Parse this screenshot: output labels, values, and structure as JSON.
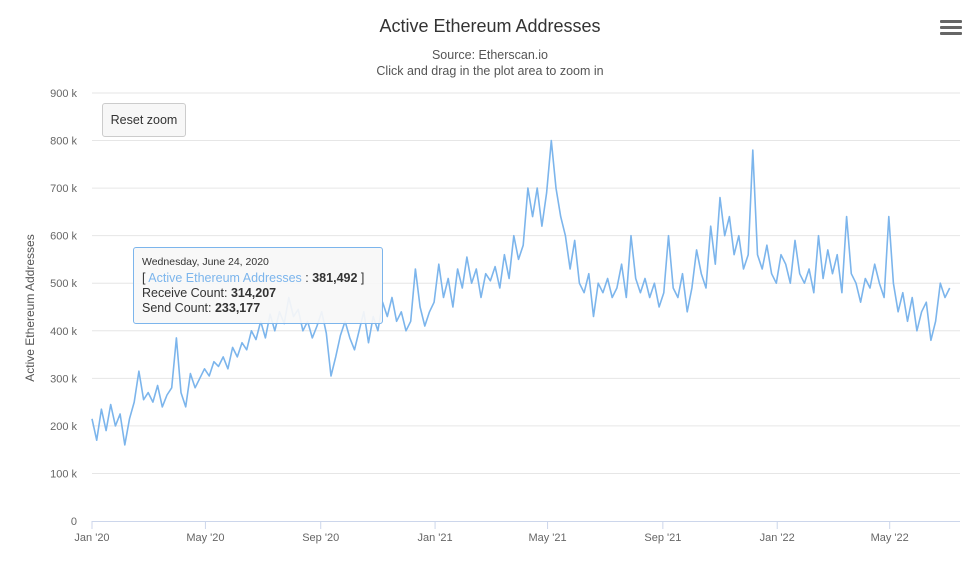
{
  "title": "Active Ethereum Addresses",
  "subtitle": "Source: Etherscan.io",
  "subtitle2": "Click and drag in the plot area to zoom in",
  "reset_zoom_label": "Reset zoom",
  "menu_icon": "hamburger-menu-icon",
  "tooltip": {
    "date": "Wednesday, June 24, 2020",
    "open_bracket": "[ ",
    "series_name": "Active Ethereum Addresses",
    "separator": " : ",
    "value": "381,492",
    "close_bracket": " ]",
    "receive_label": "Receive Count: ",
    "receive_value": "314,207",
    "send_label": "Send Count: ",
    "send_value": "233,177"
  },
  "colors": {
    "series": "#7cb5ec",
    "grid": "#e6e6e6",
    "axis": "#ccd6eb",
    "text": "#333333"
  },
  "chart_data": {
    "type": "line",
    "title": "Active Ethereum Addresses",
    "subtitle": "Source: Etherscan.io",
    "ylabel": "Active Ethereum Addresses",
    "xlabel": "",
    "ylim": [
      0,
      900000
    ],
    "xlim": [
      "2020-01-01",
      "2022-07-15"
    ],
    "grid": true,
    "legend": "none",
    "y_ticks": [
      {
        "value": 0,
        "label": "0"
      },
      {
        "value": 100000,
        "label": "100 k"
      },
      {
        "value": 200000,
        "label": "200 k"
      },
      {
        "value": 300000,
        "label": "300 k"
      },
      {
        "value": 400000,
        "label": "400 k"
      },
      {
        "value": 500000,
        "label": "500 k"
      },
      {
        "value": 600000,
        "label": "600 k"
      },
      {
        "value": 700000,
        "label": "700 k"
      },
      {
        "value": 800000,
        "label": "800 k"
      },
      {
        "value": 900000,
        "label": "900 k"
      }
    ],
    "x_ticks": [
      {
        "date": "2020-01-01",
        "label": "Jan '20"
      },
      {
        "date": "2020-05-01",
        "label": "May '20"
      },
      {
        "date": "2020-09-01",
        "label": "Sep '20"
      },
      {
        "date": "2021-01-01",
        "label": "Jan '21"
      },
      {
        "date": "2021-05-01",
        "label": "May '21"
      },
      {
        "date": "2021-09-01",
        "label": "Sep '21"
      },
      {
        "date": "2022-01-01",
        "label": "Jan '22"
      },
      {
        "date": "2022-05-01",
        "label": "May '22"
      }
    ],
    "series": [
      {
        "name": "Active Ethereum Addresses",
        "points": [
          [
            "2020-01-01",
            215000
          ],
          [
            "2020-01-06",
            170000
          ],
          [
            "2020-01-11",
            235000
          ],
          [
            "2020-01-16",
            190000
          ],
          [
            "2020-01-21",
            245000
          ],
          [
            "2020-01-26",
            200000
          ],
          [
            "2020-01-31",
            225000
          ],
          [
            "2020-02-05",
            160000
          ],
          [
            "2020-02-10",
            215000
          ],
          [
            "2020-02-15",
            250000
          ],
          [
            "2020-02-20",
            315000
          ],
          [
            "2020-02-25",
            255000
          ],
          [
            "2020-03-01",
            270000
          ],
          [
            "2020-03-06",
            250000
          ],
          [
            "2020-03-11",
            285000
          ],
          [
            "2020-03-16",
            240000
          ],
          [
            "2020-03-21",
            265000
          ],
          [
            "2020-03-26",
            280000
          ],
          [
            "2020-03-31",
            385000
          ],
          [
            "2020-04-05",
            270000
          ],
          [
            "2020-04-10",
            240000
          ],
          [
            "2020-04-15",
            310000
          ],
          [
            "2020-04-20",
            280000
          ],
          [
            "2020-04-25",
            300000
          ],
          [
            "2020-04-30",
            320000
          ],
          [
            "2020-05-05",
            305000
          ],
          [
            "2020-05-10",
            335000
          ],
          [
            "2020-05-15",
            325000
          ],
          [
            "2020-05-20",
            345000
          ],
          [
            "2020-05-25",
            320000
          ],
          [
            "2020-05-30",
            365000
          ],
          [
            "2020-06-04",
            345000
          ],
          [
            "2020-06-09",
            375000
          ],
          [
            "2020-06-14",
            360000
          ],
          [
            "2020-06-19",
            400000
          ],
          [
            "2020-06-24",
            381492
          ],
          [
            "2020-06-29",
            420000
          ],
          [
            "2020-07-04",
            385000
          ],
          [
            "2020-07-09",
            435000
          ],
          [
            "2020-07-14",
            400000
          ],
          [
            "2020-07-19",
            440000
          ],
          [
            "2020-07-24",
            415000
          ],
          [
            "2020-07-29",
            470000
          ],
          [
            "2020-08-03",
            430000
          ],
          [
            "2020-08-08",
            445000
          ],
          [
            "2020-08-13",
            400000
          ],
          [
            "2020-08-18",
            420000
          ],
          [
            "2020-08-23",
            385000
          ],
          [
            "2020-08-28",
            410000
          ],
          [
            "2020-09-02",
            440000
          ],
          [
            "2020-09-07",
            395000
          ],
          [
            "2020-09-12",
            305000
          ],
          [
            "2020-09-17",
            345000
          ],
          [
            "2020-09-22",
            390000
          ],
          [
            "2020-09-27",
            420000
          ],
          [
            "2020-10-02",
            385000
          ],
          [
            "2020-10-07",
            360000
          ],
          [
            "2020-10-12",
            400000
          ],
          [
            "2020-10-17",
            440000
          ],
          [
            "2020-10-22",
            375000
          ],
          [
            "2020-10-27",
            430000
          ],
          [
            "2020-11-01",
            400000
          ],
          [
            "2020-11-06",
            460000
          ],
          [
            "2020-11-11",
            430000
          ],
          [
            "2020-11-16",
            470000
          ],
          [
            "2020-11-21",
            420000
          ],
          [
            "2020-11-26",
            440000
          ],
          [
            "2020-12-01",
            400000
          ],
          [
            "2020-12-06",
            420000
          ],
          [
            "2020-12-11",
            530000
          ],
          [
            "2020-12-16",
            450000
          ],
          [
            "2020-12-21",
            410000
          ],
          [
            "2020-12-26",
            440000
          ],
          [
            "2020-12-31",
            460000
          ],
          [
            "2021-01-05",
            540000
          ],
          [
            "2021-01-10",
            470000
          ],
          [
            "2021-01-15",
            510000
          ],
          [
            "2021-01-20",
            450000
          ],
          [
            "2021-01-25",
            530000
          ],
          [
            "2021-01-30",
            490000
          ],
          [
            "2021-02-04",
            555000
          ],
          [
            "2021-02-09",
            500000
          ],
          [
            "2021-02-14",
            530000
          ],
          [
            "2021-02-19",
            470000
          ],
          [
            "2021-02-24",
            520000
          ],
          [
            "2021-03-01",
            505000
          ],
          [
            "2021-03-06",
            535000
          ],
          [
            "2021-03-11",
            490000
          ],
          [
            "2021-03-16",
            560000
          ],
          [
            "2021-03-21",
            510000
          ],
          [
            "2021-03-26",
            600000
          ],
          [
            "2021-03-31",
            550000
          ],
          [
            "2021-04-05",
            580000
          ],
          [
            "2021-04-10",
            700000
          ],
          [
            "2021-04-15",
            640000
          ],
          [
            "2021-04-20",
            700000
          ],
          [
            "2021-04-25",
            620000
          ],
          [
            "2021-04-30",
            690000
          ],
          [
            "2021-05-05",
            800000
          ],
          [
            "2021-05-10",
            700000
          ],
          [
            "2021-05-15",
            640000
          ],
          [
            "2021-05-20",
            600000
          ],
          [
            "2021-05-25",
            530000
          ],
          [
            "2021-05-30",
            590000
          ],
          [
            "2021-06-04",
            500000
          ],
          [
            "2021-06-09",
            480000
          ],
          [
            "2021-06-14",
            520000
          ],
          [
            "2021-06-19",
            430000
          ],
          [
            "2021-06-24",
            500000
          ],
          [
            "2021-06-29",
            480000
          ],
          [
            "2021-07-04",
            510000
          ],
          [
            "2021-07-09",
            470000
          ],
          [
            "2021-07-14",
            490000
          ],
          [
            "2021-07-19",
            540000
          ],
          [
            "2021-07-24",
            470000
          ],
          [
            "2021-07-29",
            600000
          ],
          [
            "2021-08-03",
            510000
          ],
          [
            "2021-08-08",
            480000
          ],
          [
            "2021-08-13",
            510000
          ],
          [
            "2021-08-18",
            470000
          ],
          [
            "2021-08-23",
            500000
          ],
          [
            "2021-08-28",
            450000
          ],
          [
            "2021-09-02",
            480000
          ],
          [
            "2021-09-07",
            600000
          ],
          [
            "2021-09-12",
            490000
          ],
          [
            "2021-09-17",
            470000
          ],
          [
            "2021-09-22",
            520000
          ],
          [
            "2021-09-27",
            440000
          ],
          [
            "2021-10-02",
            490000
          ],
          [
            "2021-10-07",
            570000
          ],
          [
            "2021-10-12",
            520000
          ],
          [
            "2021-10-17",
            490000
          ],
          [
            "2021-10-22",
            620000
          ],
          [
            "2021-10-27",
            540000
          ],
          [
            "2021-11-01",
            680000
          ],
          [
            "2021-11-06",
            600000
          ],
          [
            "2021-11-11",
            640000
          ],
          [
            "2021-11-16",
            560000
          ],
          [
            "2021-11-21",
            600000
          ],
          [
            "2021-11-26",
            530000
          ],
          [
            "2021-12-01",
            560000
          ],
          [
            "2021-12-06",
            780000
          ],
          [
            "2021-12-11",
            560000
          ],
          [
            "2021-12-16",
            530000
          ],
          [
            "2021-12-21",
            580000
          ],
          [
            "2021-12-26",
            520000
          ],
          [
            "2021-12-31",
            500000
          ],
          [
            "2022-01-05",
            560000
          ],
          [
            "2022-01-10",
            540000
          ],
          [
            "2022-01-15",
            500000
          ],
          [
            "2022-01-20",
            590000
          ],
          [
            "2022-01-25",
            520000
          ],
          [
            "2022-01-30",
            500000
          ],
          [
            "2022-02-04",
            530000
          ],
          [
            "2022-02-09",
            480000
          ],
          [
            "2022-02-14",
            600000
          ],
          [
            "2022-02-19",
            510000
          ],
          [
            "2022-02-24",
            570000
          ],
          [
            "2022-03-01",
            520000
          ],
          [
            "2022-03-06",
            560000
          ],
          [
            "2022-03-11",
            480000
          ],
          [
            "2022-03-16",
            640000
          ],
          [
            "2022-03-21",
            520000
          ],
          [
            "2022-03-26",
            500000
          ],
          [
            "2022-03-31",
            460000
          ],
          [
            "2022-04-05",
            510000
          ],
          [
            "2022-04-10",
            490000
          ],
          [
            "2022-04-15",
            540000
          ],
          [
            "2022-04-20",
            500000
          ],
          [
            "2022-04-25",
            470000
          ],
          [
            "2022-04-30",
            640000
          ],
          [
            "2022-05-05",
            500000
          ],
          [
            "2022-05-10",
            440000
          ],
          [
            "2022-05-15",
            480000
          ],
          [
            "2022-05-20",
            420000
          ],
          [
            "2022-05-25",
            470000
          ],
          [
            "2022-05-30",
            400000
          ],
          [
            "2022-06-04",
            440000
          ],
          [
            "2022-06-09",
            460000
          ],
          [
            "2022-06-14",
            380000
          ],
          [
            "2022-06-19",
            420000
          ],
          [
            "2022-06-24",
            500000
          ],
          [
            "2022-06-29",
            470000
          ],
          [
            "2022-07-04",
            490000
          ]
        ]
      }
    ]
  }
}
